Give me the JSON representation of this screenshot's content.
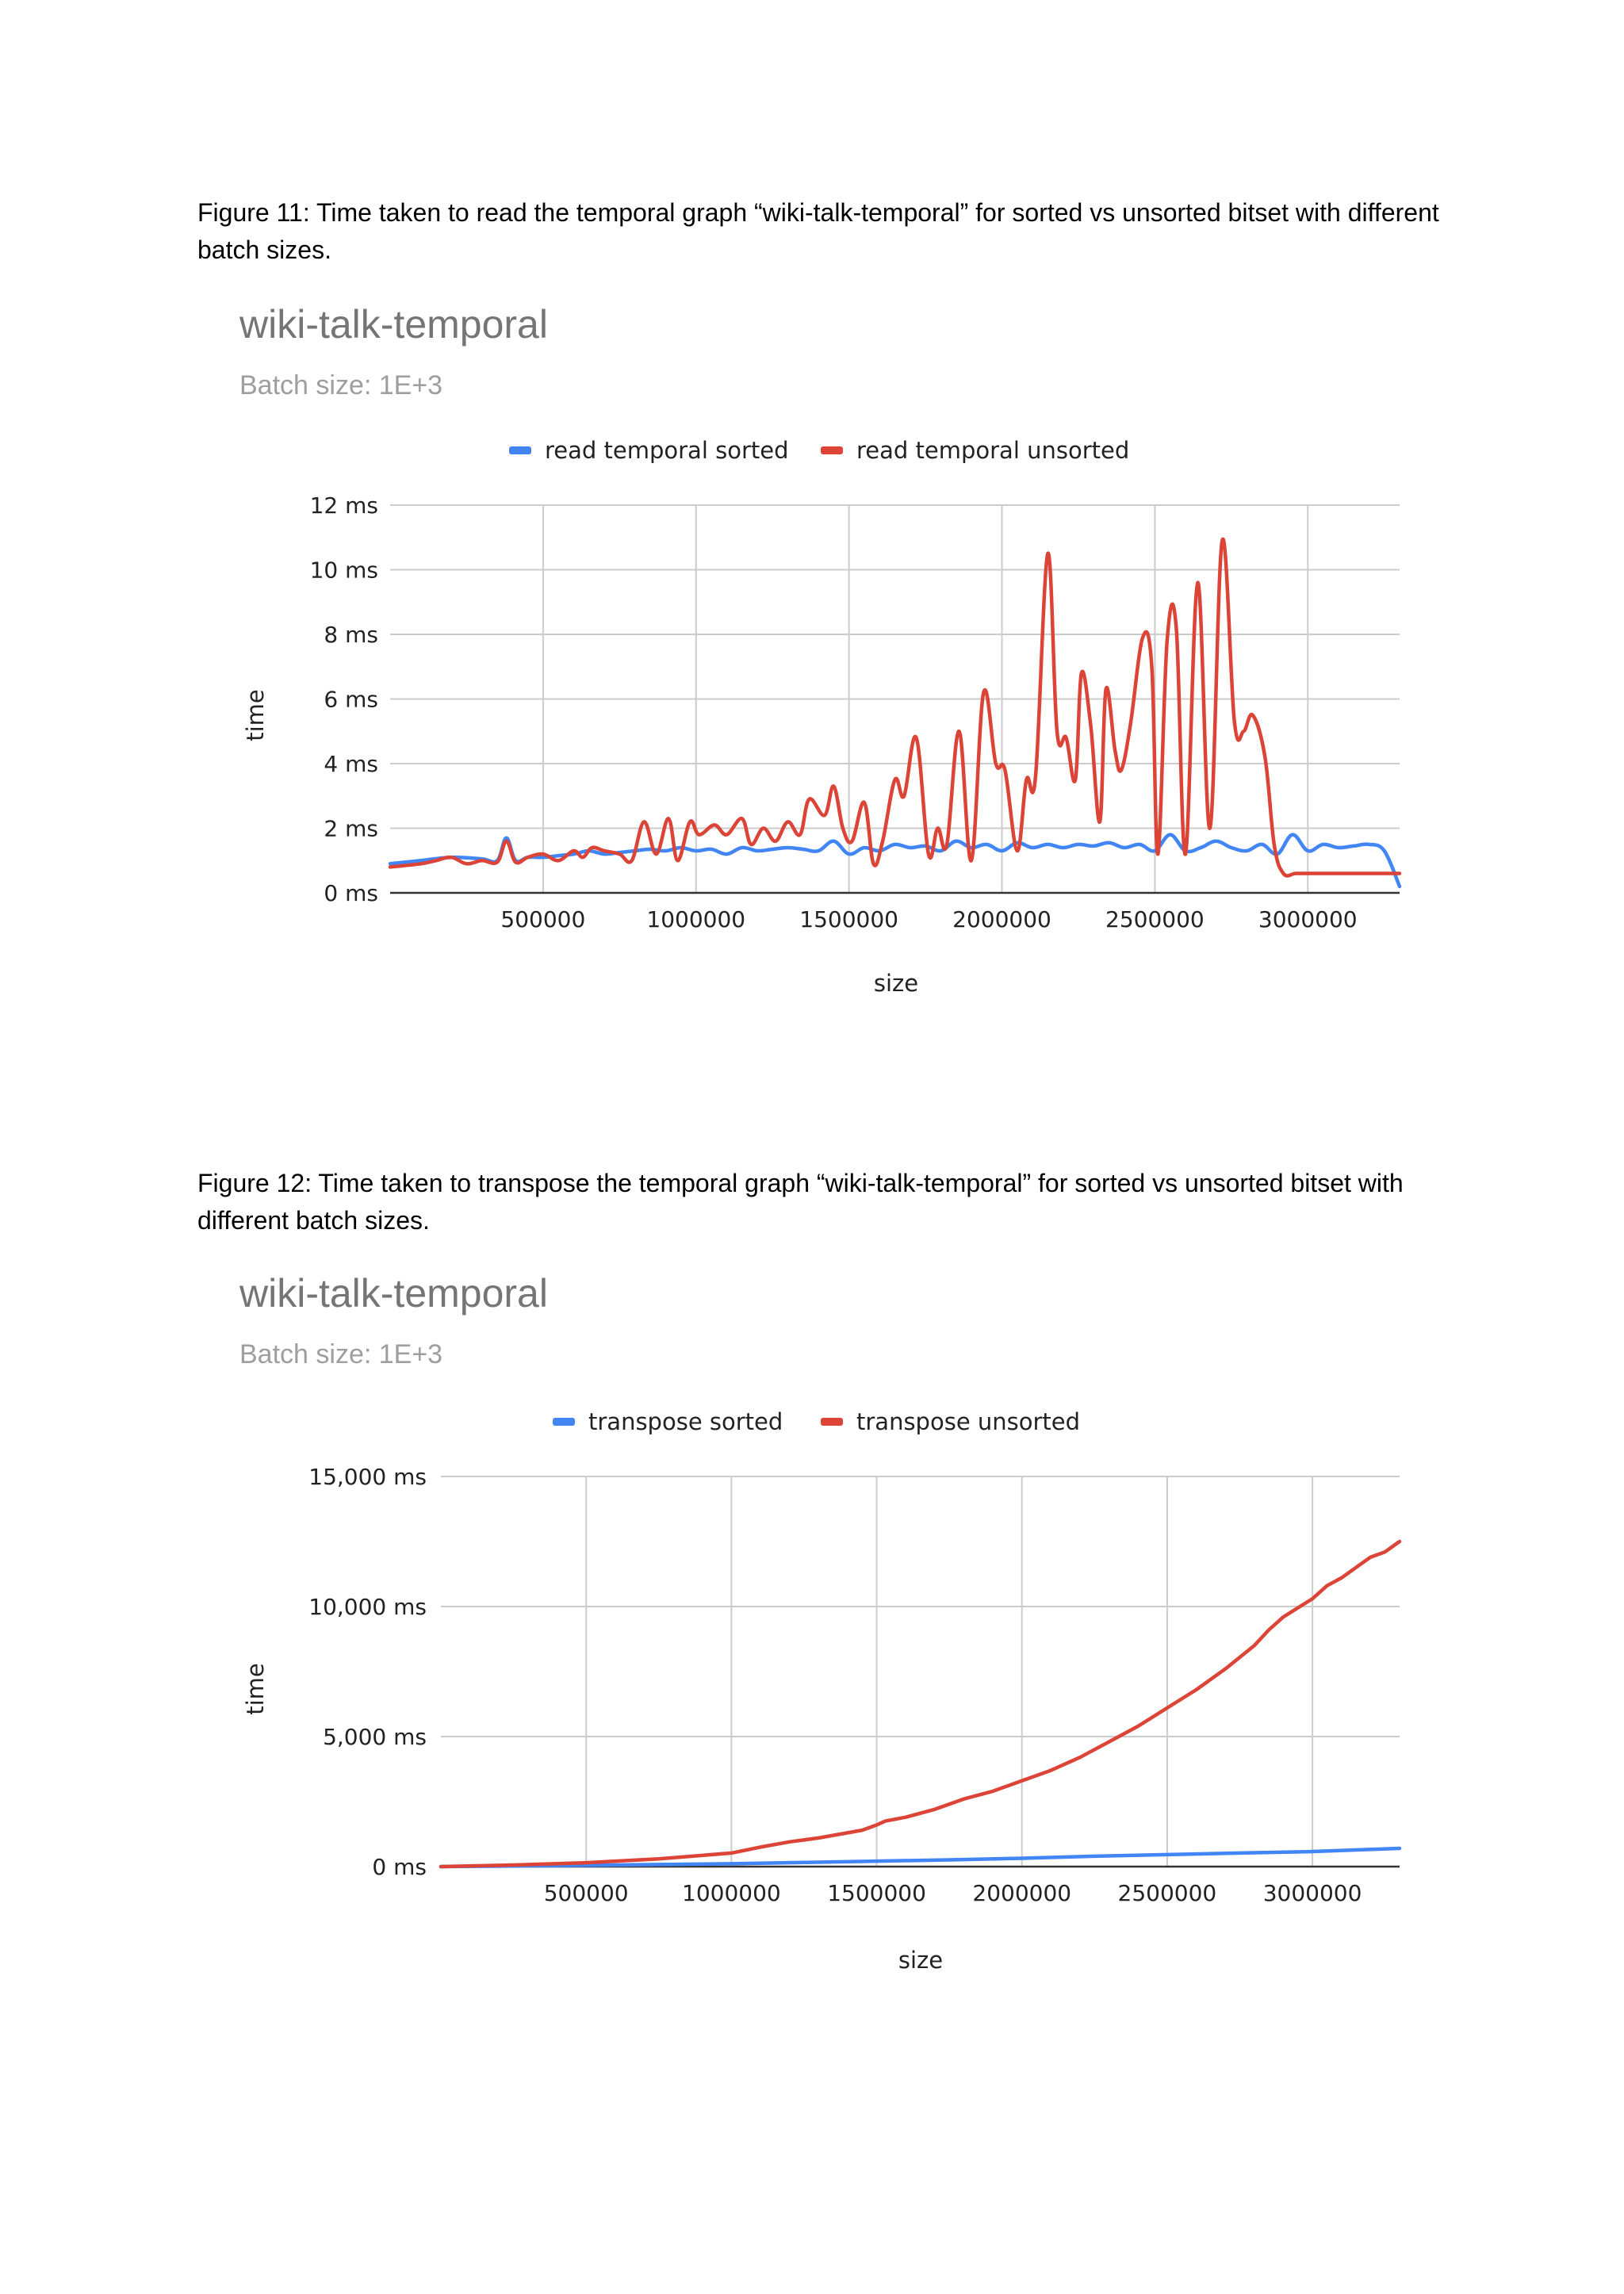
{
  "figure11": {
    "caption": "Figure 11: Time taken to read the temporal graph “wiki-talk-temporal” for sorted vs unsorted bitset with different batch sizes."
  },
  "figure12": {
    "caption": "Figure 12: Time taken to transpose the temporal graph “wiki-talk-temporal” for sorted vs unsorted bitset with different batch sizes."
  },
  "chart_data": [
    {
      "type": "line",
      "title": "wiki-talk-temporal",
      "subtitle": "Batch size: 1E+3",
      "xlabel": "size",
      "ylabel": "time",
      "xlim": [
        0,
        3300000
      ],
      "ylim": [
        0,
        12
      ],
      "x_ticks": [
        500000,
        1000000,
        1500000,
        2000000,
        2500000,
        3000000
      ],
      "x_tick_labels": [
        "500000",
        "1000000",
        "1500000",
        "2000000",
        "2500000",
        "3000000"
      ],
      "y_ticks": [
        0,
        2,
        4,
        6,
        8,
        10,
        12
      ],
      "y_tick_labels": [
        "0 ms",
        "2 ms",
        "4 ms",
        "6 ms",
        "8 ms",
        "10 ms",
        "12 ms"
      ],
      "grid": true,
      "legend_position": "top",
      "series": [
        {
          "name": "read temporal sorted",
          "color": "#4285f4",
          "x": [
            0,
            100000,
            200000,
            300000,
            350000,
            380000,
            410000,
            450000,
            500000,
            550000,
            600000,
            650000,
            700000,
            750000,
            800000,
            850000,
            900000,
            950000,
            1000000,
            1050000,
            1100000,
            1150000,
            1200000,
            1250000,
            1300000,
            1350000,
            1400000,
            1450000,
            1500000,
            1550000,
            1600000,
            1650000,
            1700000,
            1750000,
            1800000,
            1850000,
            1900000,
            1950000,
            2000000,
            2050000,
            2100000,
            2150000,
            2200000,
            2250000,
            2300000,
            2350000,
            2400000,
            2450000,
            2500000,
            2550000,
            2600000,
            2650000,
            2700000,
            2750000,
            2800000,
            2850000,
            2900000,
            2950000,
            3000000,
            3050000,
            3100000,
            3150000,
            3200000,
            3250000,
            3300000
          ],
          "y": [
            0.9,
            1.0,
            1.1,
            1.05,
            1.0,
            1.7,
            1.0,
            1.1,
            1.1,
            1.15,
            1.2,
            1.3,
            1.2,
            1.25,
            1.3,
            1.35,
            1.3,
            1.4,
            1.3,
            1.35,
            1.2,
            1.4,
            1.3,
            1.35,
            1.4,
            1.35,
            1.3,
            1.6,
            1.2,
            1.4,
            1.3,
            1.5,
            1.4,
            1.45,
            1.3,
            1.6,
            1.4,
            1.5,
            1.3,
            1.55,
            1.4,
            1.5,
            1.4,
            1.5,
            1.45,
            1.55,
            1.4,
            1.5,
            1.3,
            1.8,
            1.3,
            1.4,
            1.6,
            1.4,
            1.3,
            1.5,
            1.2,
            1.8,
            1.3,
            1.5,
            1.4,
            1.45,
            1.5,
            1.3,
            0.2
          ]
        },
        {
          "name": "read temporal unsorted",
          "color": "#db4437",
          "x": [
            0,
            100000,
            150000,
            200000,
            250000,
            300000,
            350000,
            380000,
            410000,
            450000,
            500000,
            550000,
            600000,
            630000,
            660000,
            700000,
            750000,
            790000,
            830000,
            870000,
            910000,
            940000,
            980000,
            1010000,
            1060000,
            1100000,
            1150000,
            1180000,
            1220000,
            1260000,
            1300000,
            1340000,
            1370000,
            1420000,
            1450000,
            1480000,
            1510000,
            1550000,
            1580000,
            1610000,
            1650000,
            1680000,
            1720000,
            1760000,
            1790000,
            1820000,
            1860000,
            1900000,
            1940000,
            1980000,
            2010000,
            2050000,
            2080000,
            2110000,
            2150000,
            2180000,
            2210000,
            2240000,
            2260000,
            2290000,
            2320000,
            2340000,
            2370000,
            2390000,
            2420000,
            2460000,
            2490000,
            2510000,
            2540000,
            2570000,
            2600000,
            2640000,
            2680000,
            2720000,
            2760000,
            2790000,
            2820000,
            2860000,
            2890000,
            2920000,
            2960000,
            3000000,
            3040000,
            3080000,
            3120000,
            3150000,
            3180000,
            3220000,
            3260000,
            3300000
          ],
          "y": [
            0.8,
            0.9,
            1.0,
            1.1,
            0.9,
            1.0,
            0.95,
            1.6,
            0.95,
            1.1,
            1.2,
            1.0,
            1.3,
            1.1,
            1.4,
            1.3,
            1.2,
            1.0,
            2.2,
            1.2,
            2.3,
            1.0,
            2.2,
            1.8,
            2.1,
            1.8,
            2.3,
            1.5,
            2.0,
            1.6,
            2.2,
            1.8,
            2.9,
            2.4,
            3.3,
            2.0,
            1.6,
            2.8,
            0.9,
            1.6,
            3.5,
            3.0,
            4.8,
            1.2,
            2.0,
            1.5,
            5.0,
            1.0,
            6.2,
            4.0,
            3.8,
            1.3,
            3.5,
            3.6,
            10.5,
            5.0,
            4.8,
            3.5,
            6.8,
            5.2,
            2.2,
            6.3,
            4.4,
            3.8,
            5.2,
            7.9,
            7.0,
            1.2,
            7.8,
            8.2,
            1.2,
            9.6,
            2.0,
            10.9,
            5.3,
            5.0,
            5.5,
            4.2,
            1.5,
            0.6,
            0.6,
            0.6,
            0.6,
            0.6,
            0.6,
            0.6,
            0.6,
            0.6,
            0.6,
            0.6
          ]
        }
      ]
    },
    {
      "type": "line",
      "title": "wiki-talk-temporal",
      "subtitle": "Batch size: 1E+3",
      "xlabel": "size",
      "ylabel": "time",
      "xlim": [
        0,
        3300000
      ],
      "ylim": [
        0,
        15000
      ],
      "x_ticks": [
        500000,
        1000000,
        1500000,
        2000000,
        2500000,
        3000000
      ],
      "x_tick_labels": [
        "500000",
        "1000000",
        "1500000",
        "2000000",
        "2500000",
        "3000000"
      ],
      "y_ticks": [
        0,
        5000,
        10000,
        15000
      ],
      "y_tick_labels": [
        "0 ms",
        "5,000 ms",
        "10,000 ms",
        "15,000 ms"
      ],
      "grid": true,
      "legend_position": "top",
      "series": [
        {
          "name": "transpose sorted",
          "color": "#4285f4",
          "x": [
            0,
            250000,
            500000,
            750000,
            1000000,
            1250000,
            1500000,
            1750000,
            2000000,
            2250000,
            2500000,
            2750000,
            3000000,
            3300000
          ],
          "y": [
            0,
            20,
            50,
            80,
            110,
            160,
            210,
            260,
            320,
            400,
            460,
            520,
            580,
            700
          ]
        },
        {
          "name": "transpose unsorted",
          "color": "#db4437",
          "x": [
            0,
            250000,
            500000,
            750000,
            1000000,
            1100000,
            1200000,
            1300000,
            1400000,
            1450000,
            1500000,
            1530000,
            1600000,
            1700000,
            1800000,
            1900000,
            2000000,
            2100000,
            2200000,
            2300000,
            2400000,
            2500000,
            2600000,
            2700000,
            2800000,
            2850000,
            2900000,
            3000000,
            3050000,
            3100000,
            3150000,
            3200000,
            3250000,
            3300000
          ],
          "y": [
            0,
            60,
            150,
            300,
            520,
            750,
            950,
            1100,
            1300,
            1400,
            1600,
            1750,
            1900,
            2200,
            2600,
            2900,
            3300,
            3700,
            4200,
            4800,
            5400,
            6100,
            6800,
            7600,
            8500,
            9100,
            9600,
            10300,
            10800,
            11100,
            11500,
            11900,
            12100,
            12500
          ]
        }
      ]
    }
  ]
}
